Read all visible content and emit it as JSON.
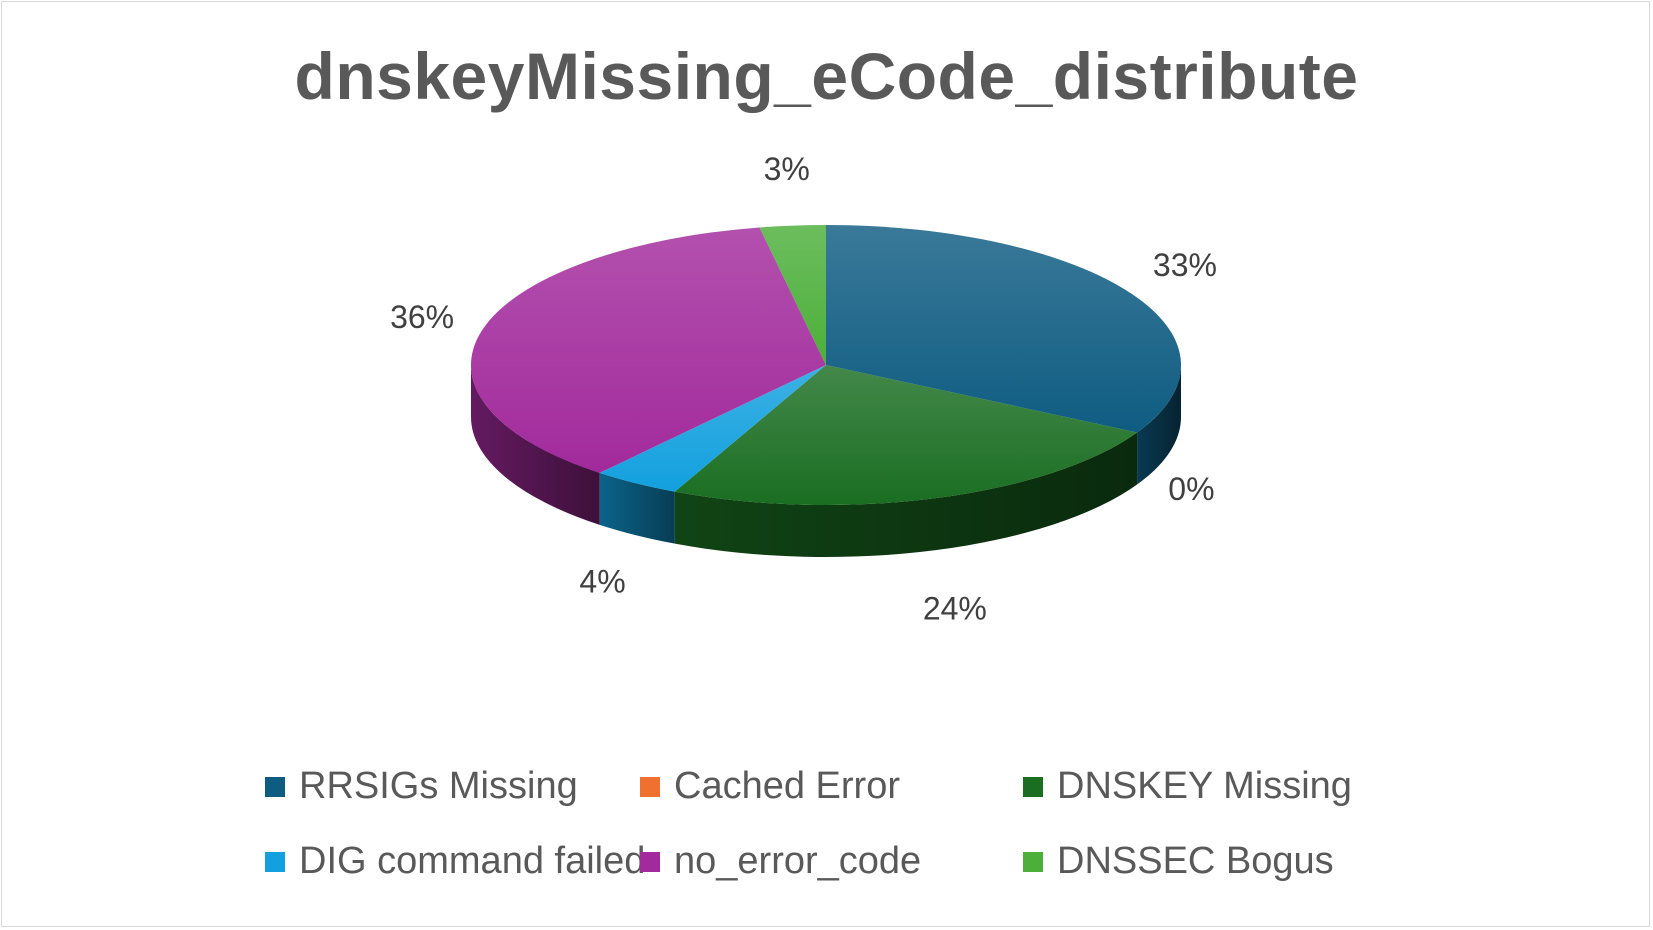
{
  "chart_data": {
    "type": "pie",
    "title": "dnskeyMissing_eCode_distribute",
    "slices": [
      {
        "name": "RRSIGs Missing",
        "value": 33,
        "label": "33%",
        "color": "#0f5c82"
      },
      {
        "name": "Cached Error",
        "value": 0,
        "label": "0%",
        "color": "#f07030"
      },
      {
        "name": "DNSKEY Missing",
        "value": 24,
        "label": "24%",
        "color": "#1a6e22"
      },
      {
        "name": "DIG command failed",
        "value": 4,
        "label": "4%",
        "color": "#12a0de"
      },
      {
        "name": "no_error_code",
        "value": 36,
        "label": "36%",
        "color": "#a22a9c"
      },
      {
        "name": "DNSSEC Bogus",
        "value": 3,
        "label": "3%",
        "color": "#4caf3a"
      }
    ],
    "legend_position": "bottom"
  }
}
